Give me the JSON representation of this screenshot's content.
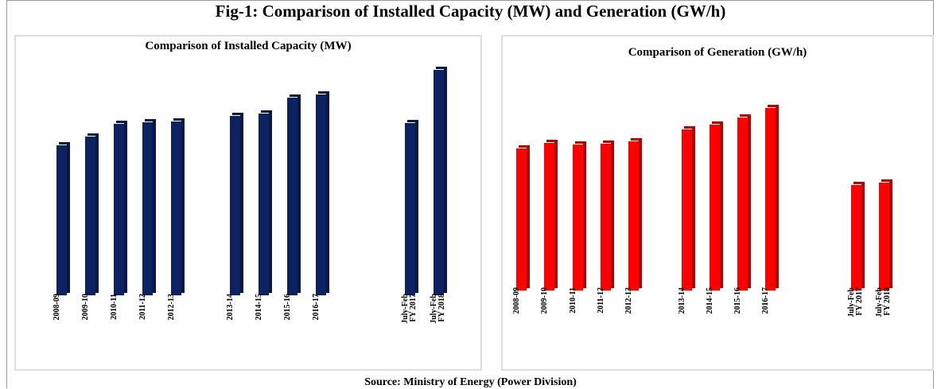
{
  "title": "Fig-1: Comparison of Installed Capacity (MW) and Generation (GW/h)",
  "source": "Source: Ministry of Energy (Power Division)",
  "chart_data": [
    {
      "type": "bar",
      "title": "Comparison of Installed Capacity (MW)",
      "color": "#0d2260",
      "categories": [
        "2008-09",
        "2009-10",
        "2010-11",
        "2011-12",
        "2012-13",
        "2013-14",
        "2014-15",
        "2015-16",
        "2016-17",
        "July-Feb\nFY 2017",
        "July-Feb\nFY 2018"
      ],
      "values": [
        190,
        201,
        217,
        219,
        220,
        227,
        230,
        250,
        254,
        218,
        285
      ]
    },
    {
      "type": "bar",
      "title": "Comparison of Generation (GW/h)",
      "color": "#ff0000",
      "categories": [
        "2008-09",
        "2009-10",
        "2010-11",
        "2011-12",
        "2012-13",
        "2013-14",
        "2014-15",
        "2015-16",
        "2016-17",
        "July-Feb\nFY 2017",
        "July-Feb\nFY 2018"
      ],
      "values": [
        180,
        187,
        185,
        186,
        189,
        204,
        210,
        219,
        231,
        134,
        137
      ]
    }
  ]
}
